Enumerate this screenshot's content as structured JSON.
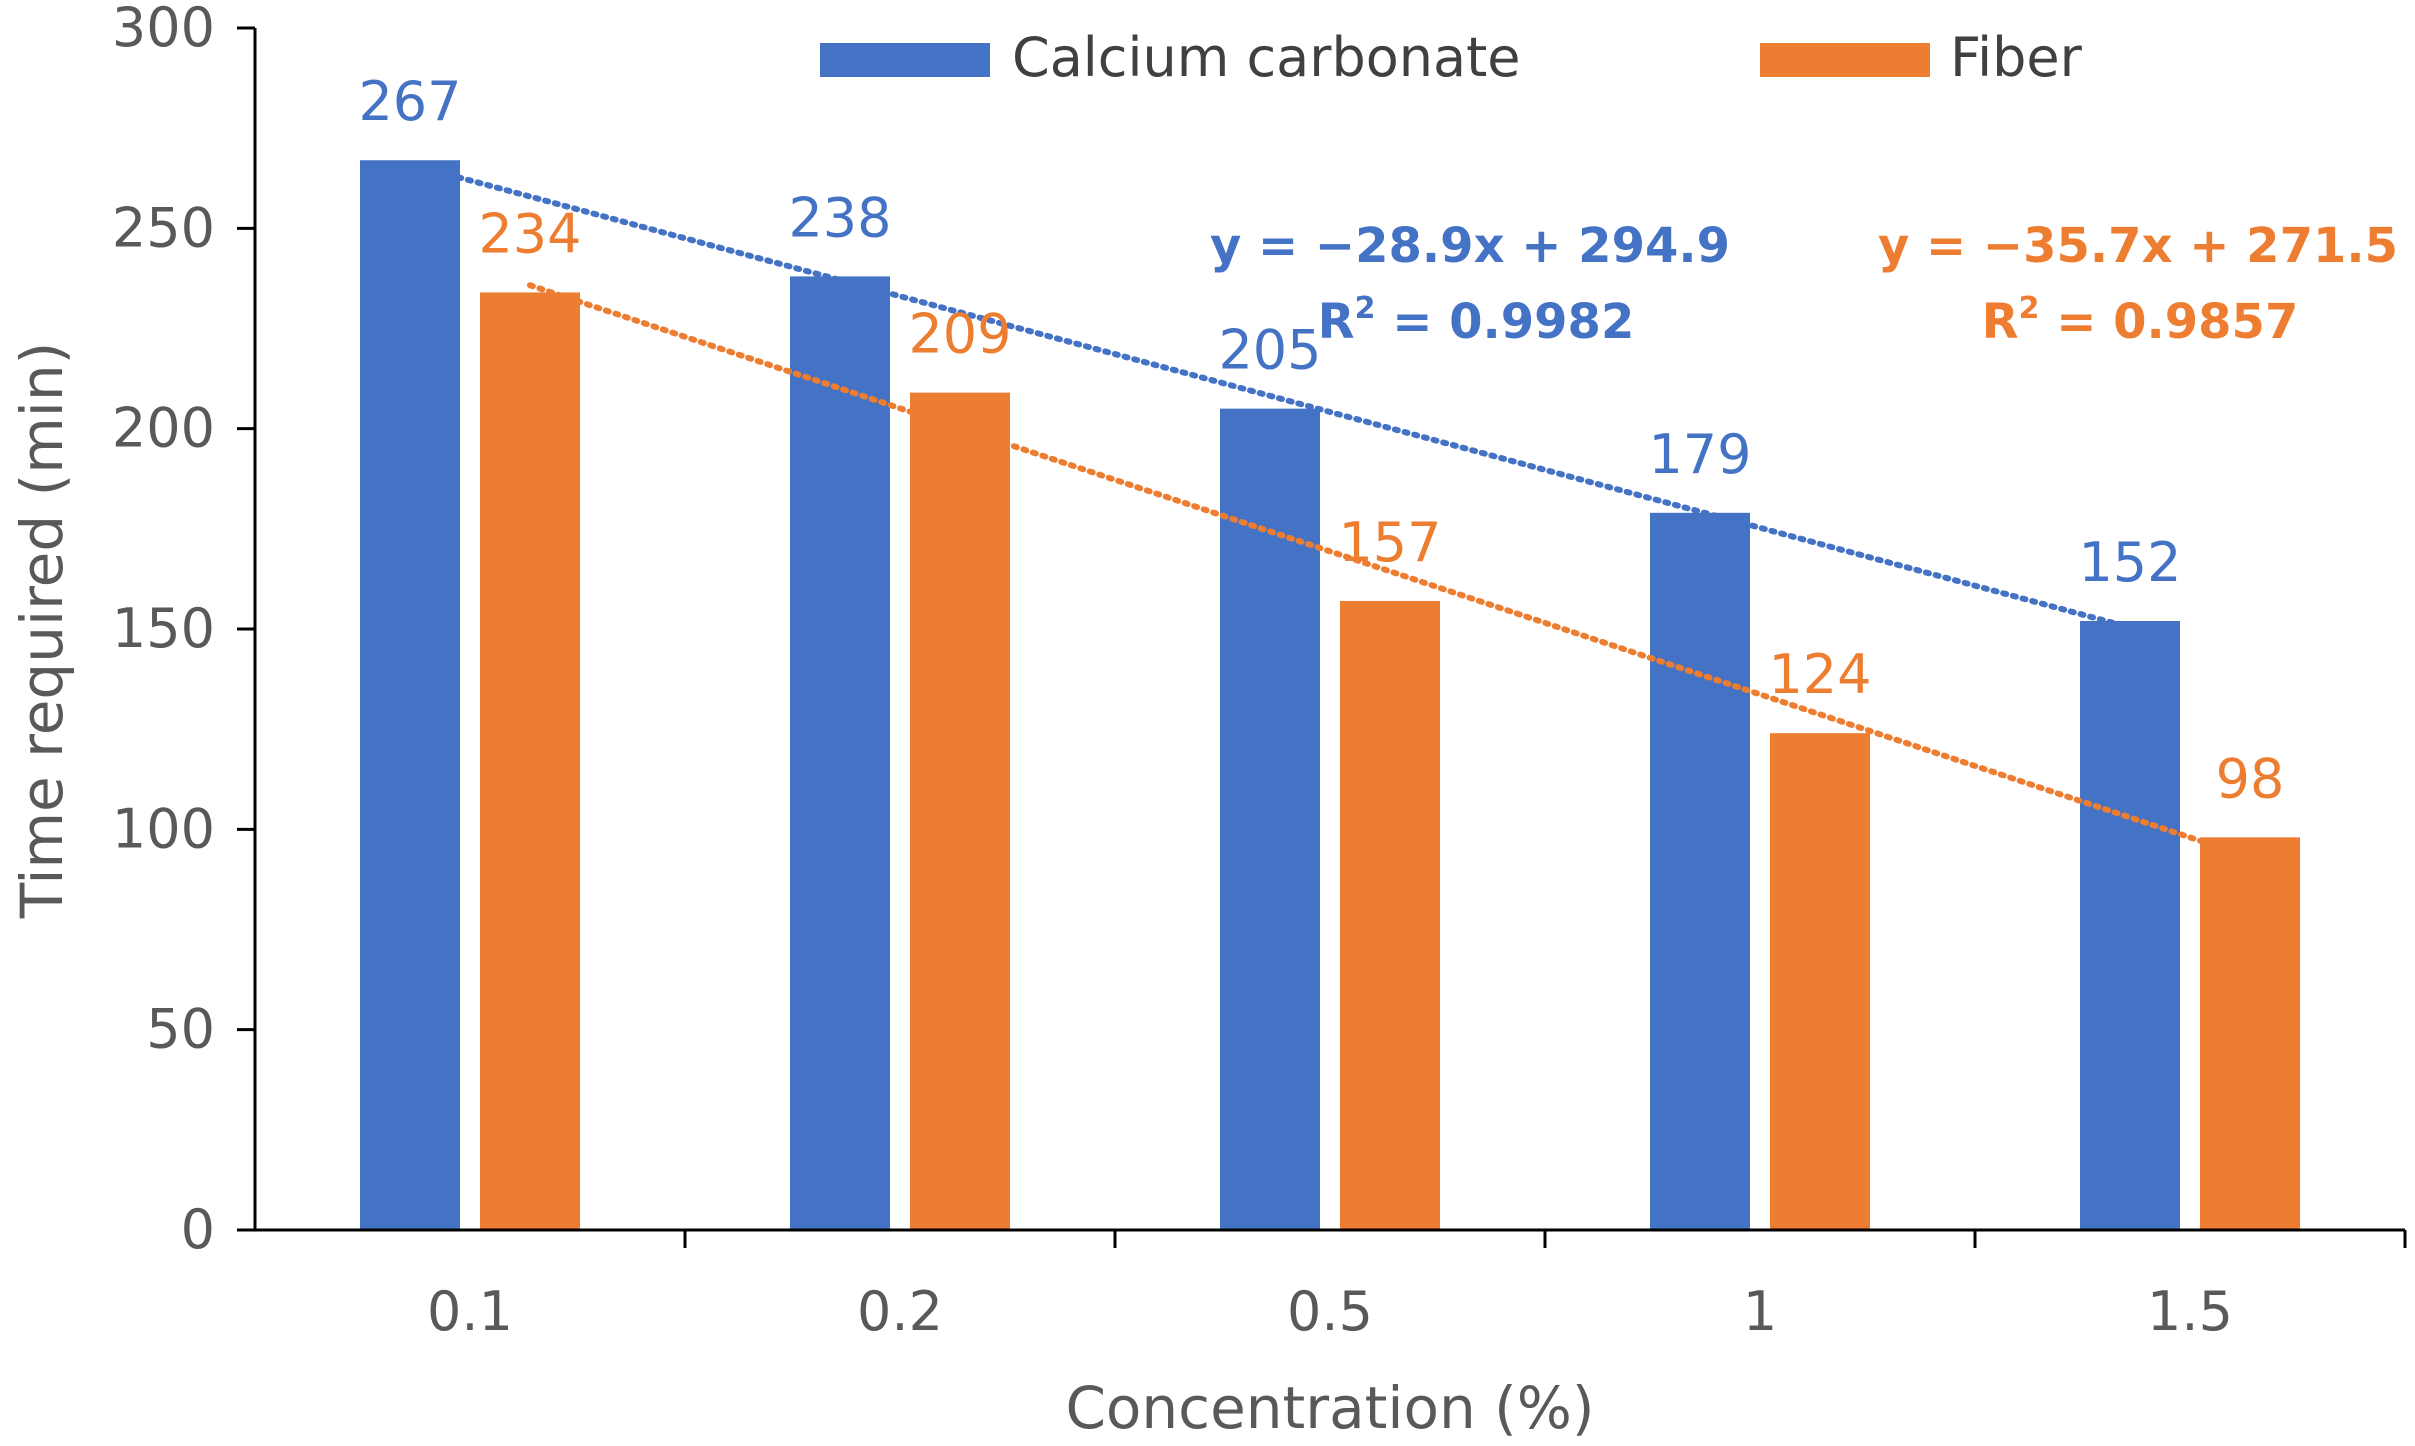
{
  "chart_data": {
    "type": "bar",
    "title": "",
    "xlabel": "Concentration (%)",
    "ylabel": "Time required (min)",
    "categories": [
      "0.1",
      "0.2",
      "0.5",
      "1",
      "1.5"
    ],
    "ylim": [
      0,
      300
    ],
    "yticks": [
      0,
      50,
      100,
      150,
      200,
      250,
      300
    ],
    "grid": false,
    "legend_position": "top",
    "series": [
      {
        "name": "Calcium carbonate",
        "color": "#4472C4",
        "values": [
          267,
          238,
          205,
          179,
          152
        ],
        "trendline": {
          "equation": "y = −28.9x + 294.9",
          "r2_label": "R",
          "r2_sup": "2",
          "r2_value": " = 0.9982",
          "slope": -28.9,
          "intercept": 294.9
        }
      },
      {
        "name": "Fiber",
        "color": "#ED7D31",
        "values": [
          234,
          209,
          157,
          124,
          98
        ],
        "trendline": {
          "equation": "y = −35.7x + 271.5",
          "r2_label": "R",
          "r2_sup": "2",
          "r2_value": " = 0.9857",
          "slope": -35.7,
          "intercept": 271.5
        }
      }
    ]
  }
}
